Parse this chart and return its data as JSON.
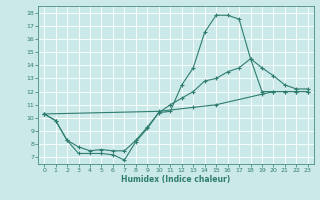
{
  "title": "",
  "xlabel": "Humidex (Indice chaleur)",
  "xlim": [
    -0.5,
    23.5
  ],
  "ylim": [
    6.5,
    18.5
  ],
  "xticks": [
    0,
    1,
    2,
    3,
    4,
    5,
    6,
    7,
    8,
    9,
    10,
    11,
    12,
    13,
    14,
    15,
    16,
    17,
    18,
    19,
    20,
    21,
    22,
    23
  ],
  "yticks": [
    7,
    8,
    9,
    10,
    11,
    12,
    13,
    14,
    15,
    16,
    17,
    18
  ],
  "bg_color": "#cce9e9",
  "grid_color": "#ffffff",
  "line_color": "#2e7d6e",
  "line1": {
    "x": [
      0,
      1,
      2,
      3,
      4,
      5,
      6,
      7,
      8,
      9,
      10,
      11,
      12,
      13,
      14,
      15,
      16,
      17,
      18,
      19,
      20,
      21,
      22,
      23
    ],
    "y": [
      10.3,
      9.8,
      8.3,
      7.3,
      7.3,
      7.3,
      7.2,
      6.8,
      8.2,
      9.2,
      10.4,
      10.5,
      12.5,
      13.8,
      16.5,
      17.8,
      17.8,
      17.5,
      14.5,
      12.0,
      12.0,
      12.0,
      12.0,
      12.0
    ]
  },
  "line2": {
    "x": [
      0,
      1,
      2,
      3,
      4,
      5,
      6,
      7,
      8,
      9,
      10,
      11,
      12,
      13,
      14,
      15,
      16,
      17,
      18,
      19,
      20,
      21,
      22,
      23
    ],
    "y": [
      10.3,
      9.8,
      8.3,
      7.8,
      7.5,
      7.6,
      7.5,
      7.5,
      8.3,
      9.3,
      10.4,
      11.0,
      11.5,
      12.0,
      12.8,
      13.0,
      13.5,
      13.8,
      14.5,
      13.8,
      13.2,
      12.5,
      12.2,
      12.2
    ]
  },
  "line3": {
    "x": [
      0,
      10,
      13,
      15,
      19,
      20,
      21,
      22,
      23
    ],
    "y": [
      10.3,
      10.5,
      10.8,
      11.0,
      11.8,
      12.0,
      12.0,
      12.0,
      12.0
    ]
  }
}
